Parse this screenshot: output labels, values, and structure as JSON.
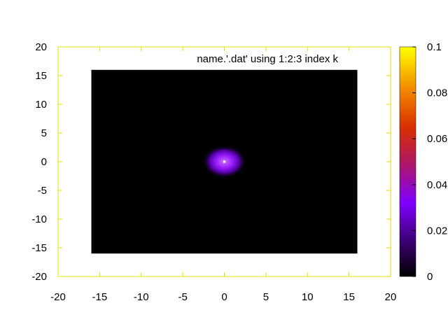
{
  "chart_data": {
    "type": "heatmap",
    "legend_text": "name.'.dat' using 1:2:3 index k",
    "legend_placement": "top-right",
    "xlim": [
      -20,
      20
    ],
    "ylim": [
      -20,
      20
    ],
    "x_ticks": [
      "-20",
      "-15",
      "-10",
      "-5",
      "0",
      "5",
      "10",
      "15",
      "20"
    ],
    "y_ticks": [
      "-20",
      "-15",
      "-10",
      "-5",
      "0",
      "5",
      "10",
      "15",
      "20"
    ],
    "data_extent": {
      "x": [
        -16,
        16
      ],
      "y": [
        -16,
        16
      ]
    },
    "peak": {
      "x": 0,
      "y": 0,
      "value": 0.1
    },
    "cbrange": [
      0,
      0.1
    ],
    "colorbar_ticks": [
      "0",
      "0.02",
      "0.04",
      "0.06",
      "0.08",
      "0.1"
    ],
    "palette": [
      "#000000",
      "#3a0070",
      "#8000ff",
      "#c02040",
      "#e06000",
      "#ffd000",
      "#ffff00"
    ],
    "grid": false,
    "border_color": "#e0e000"
  }
}
